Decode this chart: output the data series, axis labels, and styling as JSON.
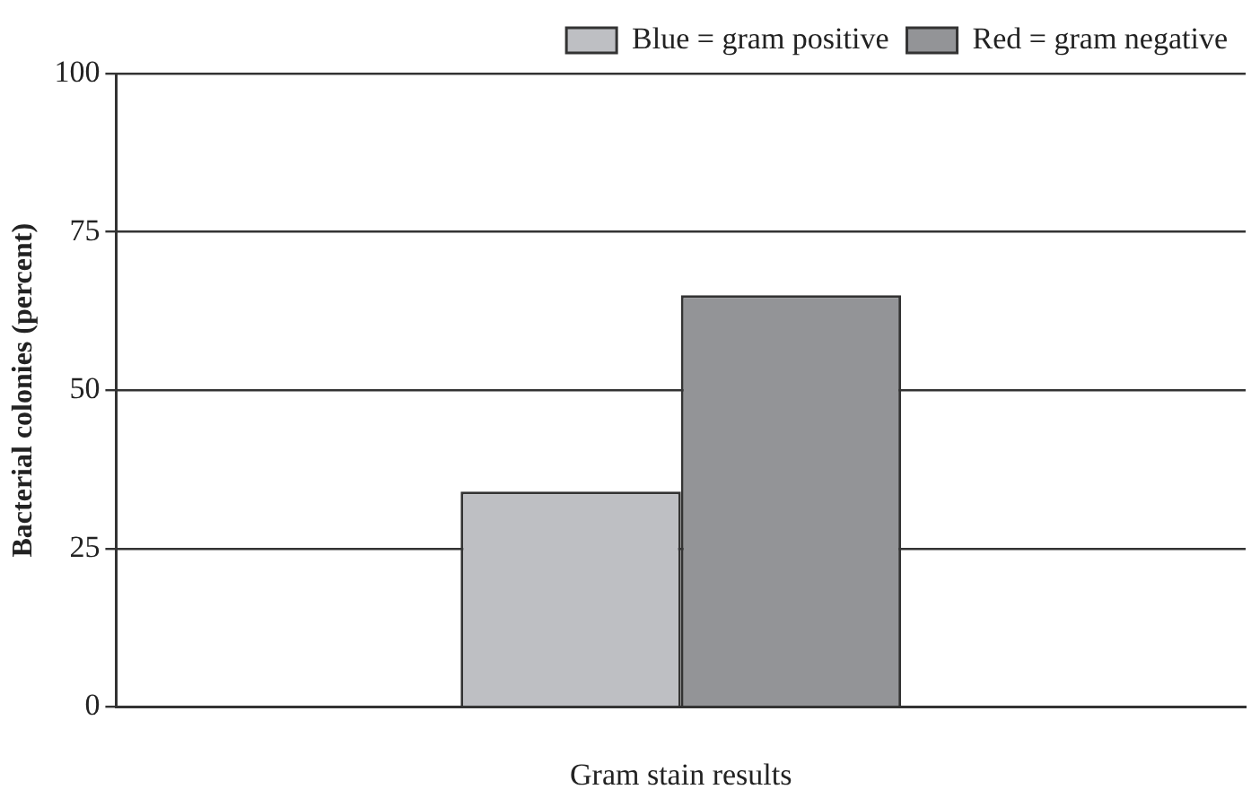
{
  "chart_data": {
    "type": "bar",
    "xlabel": "Gram stain results",
    "ylabel": "Bacterial colonies (percent)",
    "categories": [
      null
    ],
    "series": [
      {
        "name": "Blue = gram positive",
        "color": "#bebfc3",
        "values": [
          34
        ]
      },
      {
        "name": "Red = gram negative",
        "color": "#939497",
        "values": [
          65
        ]
      }
    ],
    "ylim": [
      0,
      100
    ],
    "yticks": [
      0,
      25,
      50,
      75,
      100
    ],
    "grid": "y",
    "legend": "top right"
  }
}
